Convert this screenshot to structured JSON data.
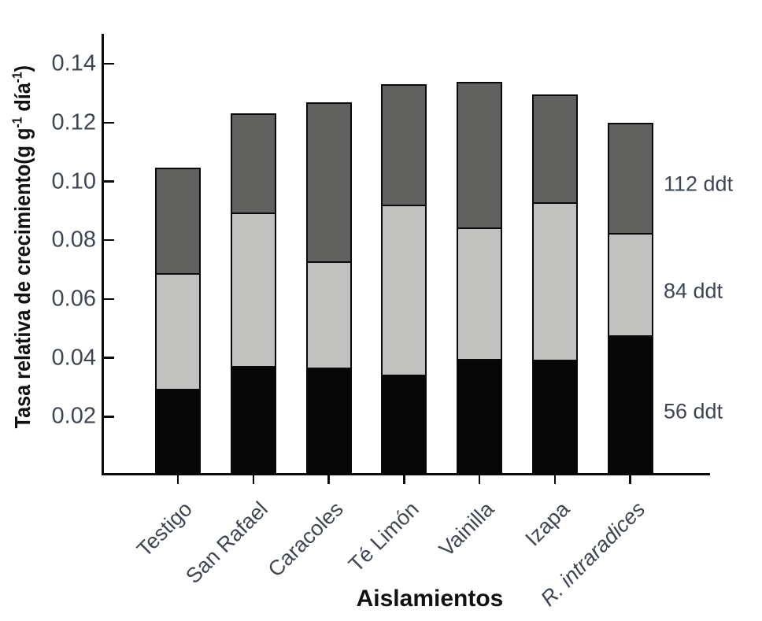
{
  "chart_data": {
    "type": "bar",
    "stacked": true,
    "title": "",
    "xlabel": "Aislamientos",
    "ylabel": "Tasa relativa de crecimiento(g g⁻¹ día⁻¹)",
    "ylabel_parts": [
      {
        "text": "Tasa relativa de crecimiento(g g",
        "sup": false
      },
      {
        "text": "-1",
        "sup": true
      },
      {
        "text": " día",
        "sup": false
      },
      {
        "text": "-1",
        "sup": true
      },
      {
        "text": ")",
        "sup": false
      }
    ],
    "categories": [
      "Testigo",
      "San Rafael",
      "Caracoles",
      "Té Limón",
      "Vainilla",
      "Izapa",
      "R. intraradices"
    ],
    "italic_categories": [
      "R. intraradices"
    ],
    "series": [
      {
        "name": "56 ddt",
        "color": "#070707",
        "values": [
          0.0293,
          0.0371,
          0.0366,
          0.0341,
          0.0396,
          0.0392,
          0.0474
        ]
      },
      {
        "name": "84 ddt",
        "color": "#c1c1c0",
        "values": [
          0.0393,
          0.0521,
          0.036,
          0.0578,
          0.0445,
          0.0536,
          0.035
        ]
      },
      {
        "name": "112 ddt",
        "color": "#616160",
        "values": [
          0.036,
          0.034,
          0.0542,
          0.0411,
          0.0497,
          0.0367,
          0.0376
        ]
      }
    ],
    "stack_totals": [
      0.1046,
      0.1232,
      0.1268,
      0.133,
      0.1338,
      0.1295,
      0.12
    ],
    "ytick_labels": [
      "0.02",
      "0.04",
      "0.06",
      "0.08",
      "0.10",
      "0.12",
      "0.14"
    ],
    "ylim": [
      0,
      0.15
    ],
    "grid": false,
    "legend_position": "right-annotations",
    "right_annotations": [
      "112 ddt",
      "84 ddt",
      "56 ddt"
    ],
    "bar_border_color": "#0a0a0a",
    "axis_color": "#0b0b0b",
    "tick_text_color": "#3f4653",
    "title_text_color": "#111111"
  }
}
